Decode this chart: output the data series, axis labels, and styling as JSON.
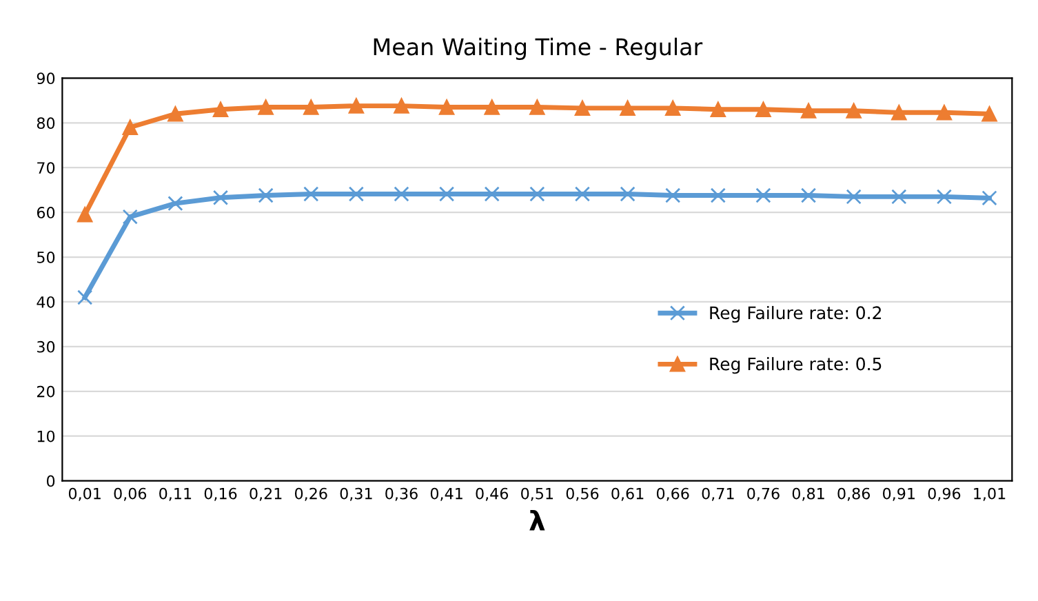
{
  "chart_data": {
    "type": "line",
    "title": "Mean Waiting Time - Regular",
    "xlabel": "λ",
    "categories": [
      "0,01",
      "0,06",
      "0,11",
      "0,16",
      "0,21",
      "0,26",
      "0,31",
      "0,36",
      "0,41",
      "0,46",
      "0,51",
      "0,56",
      "0,61",
      "0,66",
      "0,71",
      "0,76",
      "0,81",
      "0,86",
      "0,91",
      "0,96",
      "1,01"
    ],
    "series": [
      {
        "name": "Reg Failure rate: 0.2",
        "color": "#5b9bd5",
        "marker": "cross",
        "values": [
          41,
          59,
          62,
          63.3,
          63.8,
          64.1,
          64.1,
          64.1,
          64.1,
          64.1,
          64.1,
          64.1,
          64.1,
          63.8,
          63.8,
          63.8,
          63.8,
          63.5,
          63.5,
          63.5,
          63.2
        ]
      },
      {
        "name": "Reg Failure rate: 0.5",
        "color": "#ed7d31",
        "marker": "triangle",
        "values": [
          59.5,
          79,
          82,
          83,
          83.5,
          83.5,
          83.8,
          83.8,
          83.5,
          83.5,
          83.5,
          83.3,
          83.3,
          83.3,
          83,
          83,
          82.7,
          82.7,
          82.3,
          82.3,
          82
        ]
      }
    ],
    "ylim": [
      0,
      90
    ],
    "yticks": [
      0,
      10,
      20,
      30,
      40,
      50,
      60,
      70,
      80,
      90
    ],
    "grid": "y",
    "legend": "center right",
    "line_style": "solid"
  }
}
